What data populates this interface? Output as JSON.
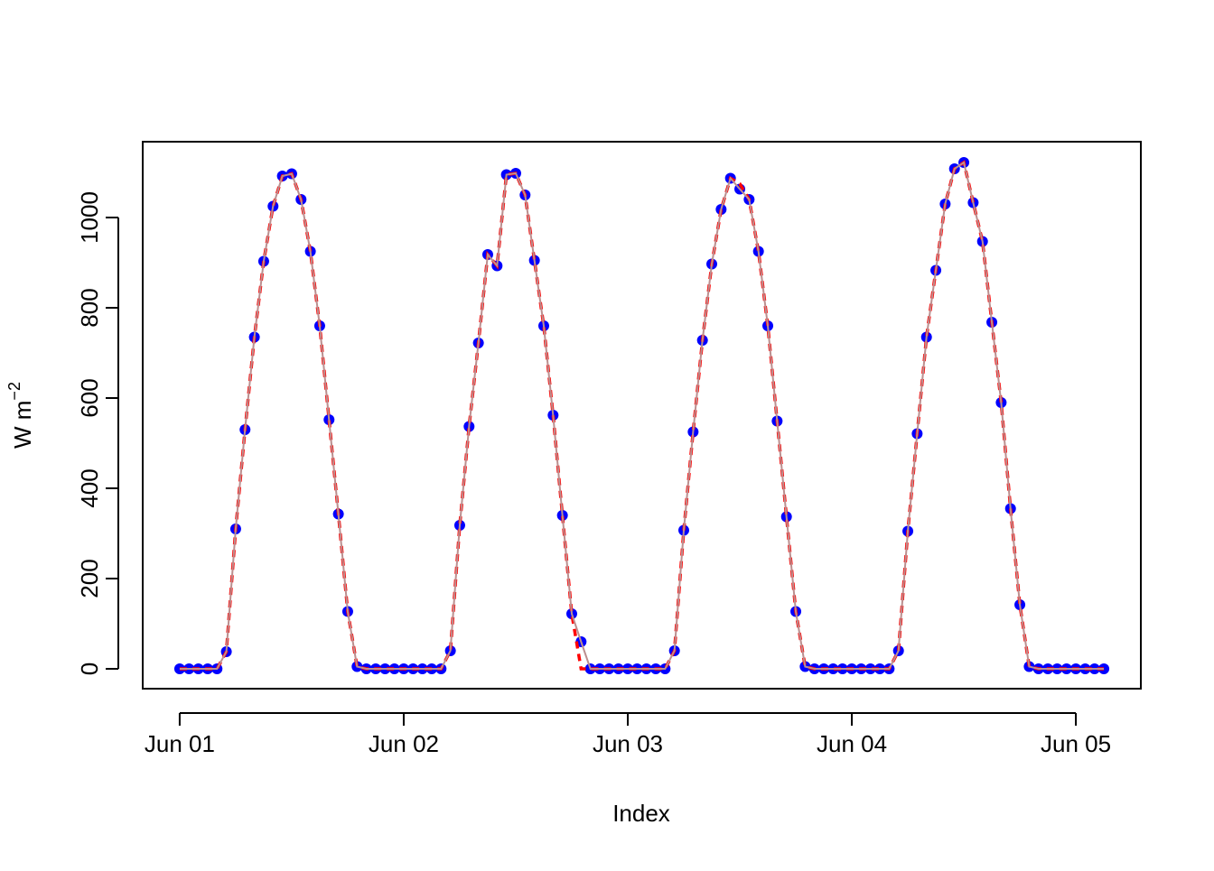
{
  "chart_data": {
    "type": "line",
    "xlabel": "Index",
    "ylabel": "W m",
    "ylabel_sup": "−2",
    "x": [
      0,
      1,
      2,
      3,
      4,
      5,
      6,
      7,
      8,
      9,
      10,
      11,
      12,
      13,
      14,
      15,
      16,
      17,
      18,
      19,
      20,
      21,
      22,
      23,
      24,
      25,
      26,
      27,
      28,
      29,
      30,
      31,
      32,
      33,
      34,
      35,
      36,
      37,
      38,
      39,
      40,
      41,
      42,
      43,
      44,
      45,
      46,
      47,
      48,
      49,
      50,
      51,
      52,
      53,
      54,
      55,
      56,
      57,
      58,
      59,
      60,
      61,
      62,
      63,
      64,
      65,
      66,
      67,
      68,
      69,
      70,
      71,
      72,
      73,
      74,
      75,
      76,
      77,
      78,
      79,
      80,
      81,
      82,
      83,
      84,
      85,
      86,
      87,
      88,
      89,
      90,
      91,
      92,
      93,
      94,
      95,
      96,
      97,
      98,
      99
    ],
    "series": [
      {
        "color": "#0000ff",
        "line_color": "#bc8f8f",
        "markers": true,
        "values": [
          0,
          0,
          0,
          0,
          0,
          38,
          310,
          530,
          735,
          903,
          1025,
          1092,
          1097,
          1040,
          925,
          760,
          552,
          343,
          127,
          5,
          0,
          0,
          0,
          0,
          0,
          0,
          0,
          0,
          0,
          40,
          318,
          537,
          722,
          918,
          893,
          1095,
          1098,
          1050,
          905,
          760,
          562,
          340,
          122,
          60,
          0,
          0,
          0,
          0,
          0,
          0,
          0,
          0,
          0,
          40,
          307,
          525,
          728,
          897,
          1018,
          1087,
          1063,
          1040,
          925,
          760,
          549,
          337,
          127,
          5,
          0,
          0,
          0,
          0,
          0,
          0,
          0,
          0,
          0,
          40,
          305,
          521,
          735,
          883,
          1030,
          1108,
          1122,
          1033,
          947,
          768,
          590,
          355,
          142,
          5,
          0,
          0,
          0,
          0,
          0,
          0,
          0,
          0
        ]
      },
      {
        "color": "#ff0000",
        "dashed": true,
        "values": [
          0,
          0,
          0,
          0,
          0,
          38,
          310,
          530,
          735,
          903,
          1025,
          1092,
          1097,
          1040,
          925,
          760,
          552,
          343,
          127,
          5,
          0,
          0,
          0,
          0,
          0,
          0,
          0,
          0,
          0,
          40,
          318,
          537,
          722,
          918,
          893,
          1095,
          1098,
          1050,
          905,
          760,
          562,
          340,
          122,
          0,
          0,
          0,
          0,
          0,
          0,
          0,
          0,
          0,
          0,
          40,
          307,
          525,
          728,
          897,
          1018,
          1087,
          1075,
          1040,
          925,
          760,
          549,
          337,
          127,
          5,
          0,
          0,
          0,
          0,
          0,
          0,
          0,
          0,
          0,
          40,
          305,
          521,
          735,
          883,
          1030,
          1108,
          1122,
          1033,
          947,
          768,
          590,
          355,
          142,
          5,
          0,
          0,
          0,
          0,
          0,
          0,
          0,
          0
        ]
      }
    ],
    "xlim": [
      -3.96,
      102.96
    ],
    "ylim": [
      -44,
      1168
    ],
    "xticks": [
      {
        "value": 0,
        "label": "Jun 01"
      },
      {
        "value": 24,
        "label": "Jun 02"
      },
      {
        "value": 48,
        "label": "Jun 03"
      },
      {
        "value": 72,
        "label": "Jun 04"
      },
      {
        "value": 96,
        "label": "Jun 05"
      }
    ],
    "yticks": [
      0,
      200,
      400,
      600,
      800,
      1000
    ]
  }
}
